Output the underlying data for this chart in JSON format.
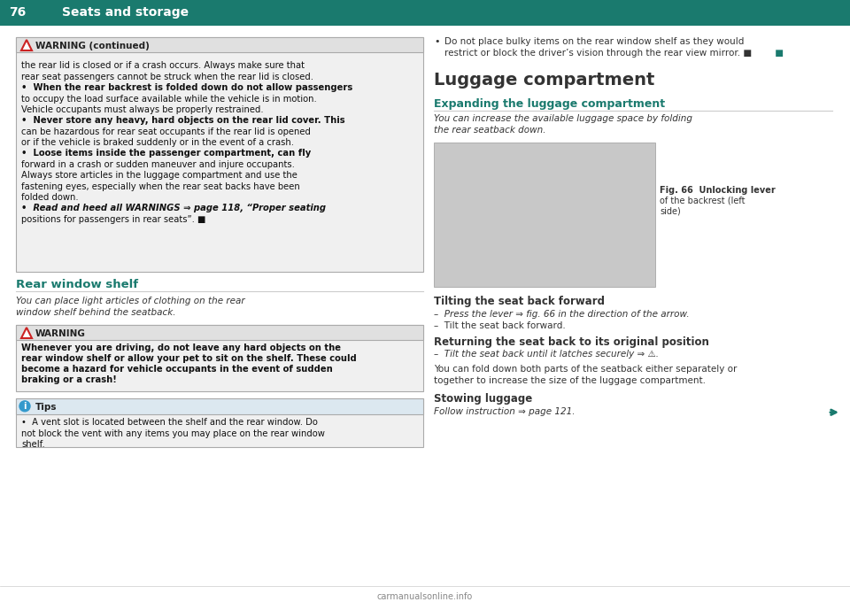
{
  "page_num": "76",
  "header_title": "Seats and storage",
  "header_bg": "#1a7a6e",
  "header_text_color": "#ffffff",
  "teal_color": "#1a7a6e",
  "warning_continued_header": "WARNING (continued)",
  "warning_continued_lines": [
    "the rear lid is closed or if a crash occurs. Always make sure that",
    "rear seat passengers cannot be struck when the rear lid is closed.",
    "•  When the rear backrest is folded down do not allow passengers",
    "to occupy the load surface available while the vehicle is in motion.",
    "Vehicle occupants must always be properly restrained.",
    "•  Never store any heavy, hard objects on the rear lid cover. This",
    "can be hazardous for rear seat occupants if the rear lid is opened",
    "or if the vehicle is braked suddenly or in the event of a crash.",
    "•  Loose items inside the passenger compartment, can fly",
    "forward in a crash or sudden maneuver and injure occupants.",
    "Always store articles in the luggage compartment and use the",
    "fastening eyes, especially when the rear seat backs have been",
    "folded down.",
    "•  Read and heed all WARNINGS ⇒ page 118, “Proper seating",
    "positions for passengers in rear seats”. ■"
  ],
  "rear_window_shelf_title": "Rear window shelf",
  "rear_window_shelf_italic": "You can place light articles of clothing on the rear\nwindow shelf behind the seatback.",
  "warning2_header": "WARNING",
  "warning2_lines": [
    "Whenever you are driving, do not leave any hard objects on the",
    "rear window shelf or allow your pet to sit on the shelf. These could",
    "become a hazard for vehicle occupants in the event of sudden",
    "braking or a crash!"
  ],
  "tips_lines": [
    "•  A vent slot is located between the shelf and the rear window. Do",
    "not block the vent with any items you may place on the rear window",
    "shelf."
  ],
  "right_bullet": "Do not place bulky items on the rear window shelf as they would\nrestrict or block the driver’s vision through the rear view mirror. ■",
  "luggage_title": "Luggage compartment",
  "expanding_title": "Expanding the luggage compartment",
  "expanding_italic": "You can increase the available luggage space by folding\nthe rear seatback down.",
  "fig_caption": "Fig. 66  Unlocking lever\nof the backrest (left\nside)",
  "tilting_title": "Tilting the seat back forward",
  "tilting_lines": [
    "–  Press the lever ⇒ fig. 66 in the direction of the arrow.",
    "–  Tilt the seat back forward."
  ],
  "returning_title": "Returning the seat back to its original position",
  "returning_lines": [
    "–  Tilt the seat back until it latches securely ⇒ ⚠."
  ],
  "returning_body": "You can fold down both parts of the seatback either separately or\ntogether to increase the size of the luggage compartment.",
  "stowing_title": "Stowing luggage",
  "stowing_body": "Follow instruction ⇒ page 121.",
  "footer_text": "carmanualsonline.info",
  "bg_color": "#ffffff",
  "body_text_color": "#333333",
  "warning_bg": "#f0f0f0",
  "warning_border": "#cccccc"
}
